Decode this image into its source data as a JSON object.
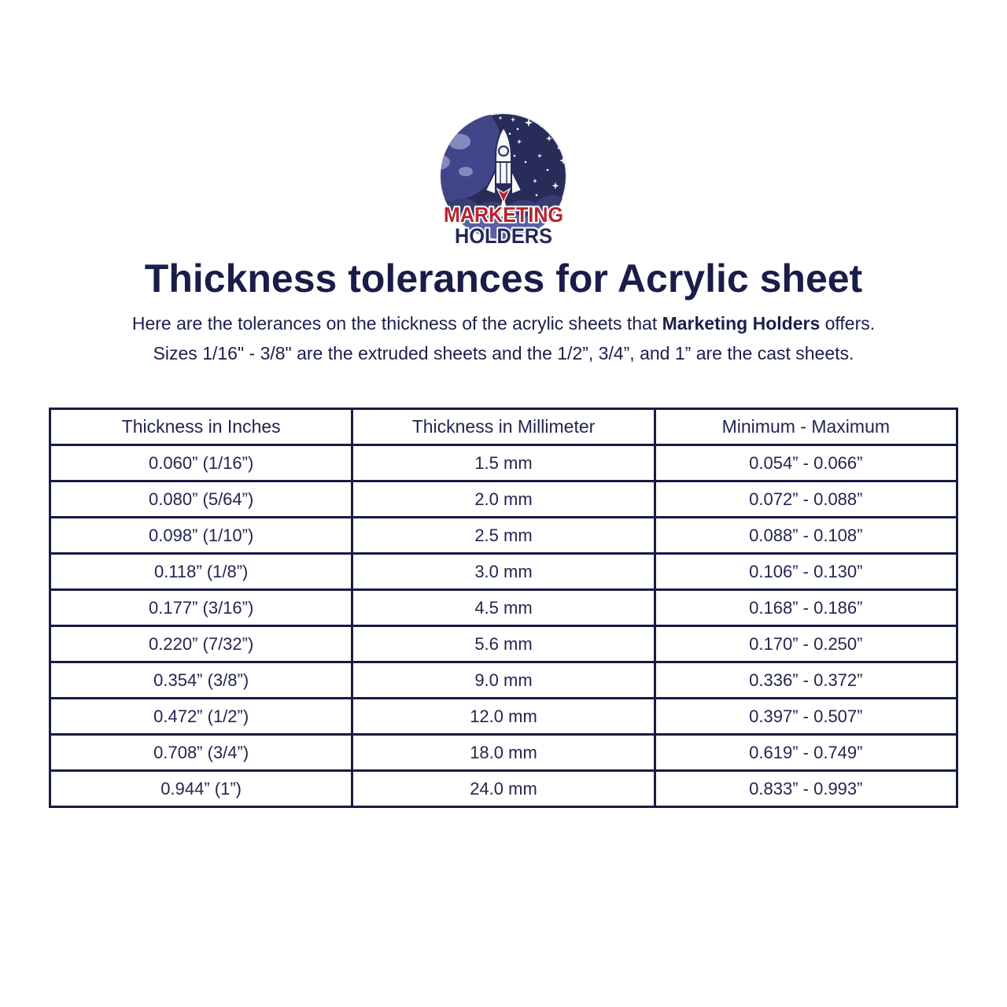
{
  "logo": {
    "brand_line1": "MARKETING",
    "brand_line2": "HOLDERS",
    "colors": {
      "red": "#b5242e",
      "navy": "#232a57",
      "space_background": "#272c58",
      "planet": "#41468a",
      "planet_land": "#838abf",
      "cloud_dark": "#383d74",
      "cloud_light": "#5b61a3",
      "rocket_white": "#f7f8fb",
      "star_white": "#ffffff"
    }
  },
  "title": "Thickness tolerances for Acrylic sheet",
  "description": {
    "line1_pre": "Here are the tolerances on the thickness of the acrylic sheets that ",
    "line1_bold": "Marketing Holders",
    "line1_post": " offers.",
    "line2": "Sizes 1/16\" - 3/8\" are the extruded sheets and the 1/2”, 3/4”, and 1” are the cast sheets."
  },
  "table": {
    "headers": [
      "Thickness in Inches",
      "Thickness in Millimeter",
      "Minimum - Maximum"
    ],
    "rows": [
      [
        "0.060” (1/16”)",
        "1.5 mm",
        "0.054” - 0.066”"
      ],
      [
        "0.080” (5/64”)",
        "2.0 mm",
        "0.072” - 0.088”"
      ],
      [
        "0.098” (1/10”)",
        "2.5 mm",
        "0.088” - 0.108”"
      ],
      [
        "0.118” (1/8”)",
        "3.0 mm",
        "0.106” - 0.130”"
      ],
      [
        "0.177” (3/16”)",
        "4.5 mm",
        "0.168” - 0.186”"
      ],
      [
        "0.220” (7/32”)",
        "5.6 mm",
        "0.170” - 0.250”"
      ],
      [
        "0.354” (3/8”)",
        "9.0 mm",
        "0.336” - 0.372”"
      ],
      [
        "0.472” (1/2”)",
        "12.0 mm",
        "0.397” - 0.507”"
      ],
      [
        "0.708” (3/4”)",
        "18.0 mm",
        "0.619” - 0.749”"
      ],
      [
        "0.944” (1”)",
        "24.0 mm",
        "0.833” - 0.993”"
      ]
    ]
  },
  "colors": {
    "ink": "#1d2149",
    "table_border": "#171b44",
    "title": "#191d47"
  }
}
